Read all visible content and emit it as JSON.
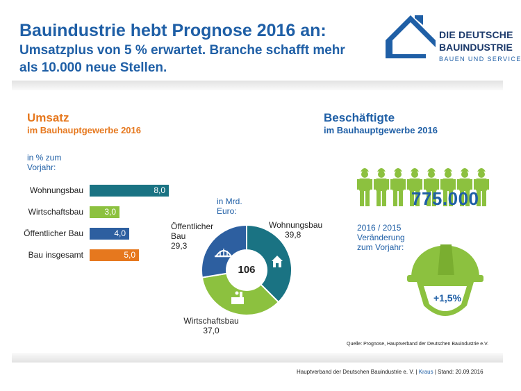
{
  "header": {
    "title_line1": "Bauindustrie hebt Prognose 2016 an:",
    "title_line2": "Umsatzplus von 5 % erwartet. Branche schafft mehr als 10.000 neue Stellen."
  },
  "logo": {
    "line1": "DIE DEUTSCHE",
    "line2": "BAUINDUSTRIE",
    "line3": "BAUEN UND SERVICES"
  },
  "colors": {
    "teal": "#1a7383",
    "green": "#8cc13f",
    "blue": "#2d5fa0",
    "orange": "#e6781e",
    "title_blue": "#1f5fa6"
  },
  "left_section": {
    "heading": "Umsatz",
    "subheading": "im Bauhauptgewerbe 2016",
    "unit": "in % zum Vorjahr:"
  },
  "right_section": {
    "heading": "Beschäftigte",
    "subheading": "im Bauhauptgewerbe 2016",
    "employees_total": "775.000",
    "change_label": "2016 / 2015 Veränderung zum Vorjahr:",
    "change_value": "+1,5%"
  },
  "chart_data": [
    {
      "type": "bar",
      "title": "Umsatz im Bauhauptgewerbe 2016",
      "ylabel": "in % zum Vorjahr",
      "categories": [
        "Wohnungsbau",
        "Wirtschaftsbau",
        "Öffentlicher Bau",
        "Bau insgesamt"
      ],
      "values": [
        8.0,
        3.0,
        4.0,
        5.0
      ],
      "value_labels": [
        "8,0",
        "3,0",
        "4,0",
        "5,0"
      ],
      "colors": [
        "#1a7383",
        "#8cc13f",
        "#2d5fa0",
        "#e6781e"
      ],
      "xlim": [
        0,
        8
      ]
    },
    {
      "type": "pie",
      "style": "donut",
      "title": "Umsatz in Mrd. Euro",
      "unit": "in Mrd. Euro:",
      "total": "106",
      "labels": [
        "Wohnungsbau",
        "Wirtschaftsbau",
        "Öffentlicher Bau"
      ],
      "values": [
        39.8,
        37.0,
        29.3
      ],
      "value_labels": [
        "39,8",
        "37,0",
        "29,3"
      ],
      "colors": [
        "#1a7383",
        "#8cc13f",
        "#2d5fa0"
      ],
      "display_labels": [
        "Wohnungsbau",
        "Wirtschaftsbau",
        "Öffentlicher Bau"
      ]
    }
  ],
  "source_note": "Quelle: Prognose, Hauptverband der Deutschen Bauindustrie e.V.",
  "footer": {
    "org": "Hauptverband der Deutschen Bauindustrie e. V. |",
    "author": "Kraus",
    "date": "| Stand: 20.09.2016"
  }
}
